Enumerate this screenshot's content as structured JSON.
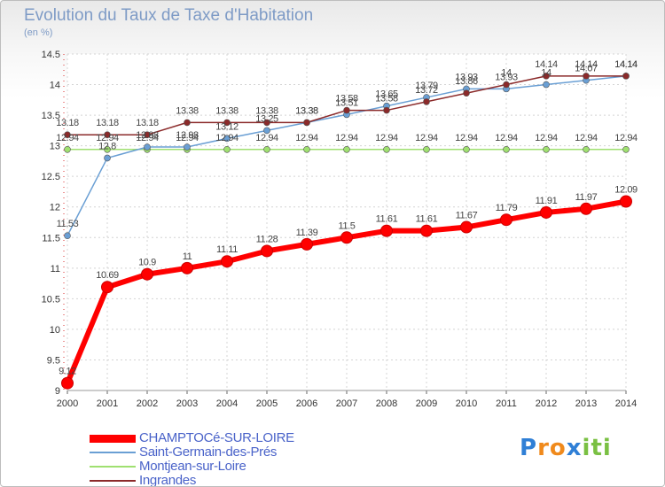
{
  "header": {
    "title": "Evolution du Taux de Taxe d'Habitation",
    "unit": "(en %)"
  },
  "chart_data": {
    "type": "line",
    "title": "Evolution du Taux de Taxe d'Habitation",
    "ylabel": "(en %)",
    "xlabel": "",
    "x": [
      2000,
      2001,
      2002,
      2003,
      2004,
      2005,
      2006,
      2007,
      2008,
      2009,
      2010,
      2011,
      2012,
      2013,
      2014
    ],
    "ylim": [
      9,
      14.5
    ],
    "yticks": [
      "9",
      "9.5",
      "10",
      "10.5",
      "11",
      "11.5",
      "12",
      "12.5",
      "13",
      "13.5",
      "14",
      "14.5"
    ],
    "grid": true,
    "legend_position": "bottom-left",
    "series": [
      {
        "name": "CHAMPTOCé-SUR-LOIRE",
        "color": "#ff0000",
        "values": [
          9.12,
          10.69,
          10.9,
          11,
          11.11,
          11.28,
          11.39,
          11.5,
          11.61,
          11.61,
          11.67,
          11.79,
          11.91,
          11.97,
          12.09
        ],
        "labels": [
          "9.12",
          "10.69",
          "10.9",
          "11",
          "11.11",
          "11.28",
          "11.39",
          "11.5",
          "11.61",
          "11.61",
          "11.67",
          "11.79",
          "11.91",
          "11.97",
          "12.09"
        ]
      },
      {
        "name": "Saint-Germain-des-Prés",
        "color": "#6a9fd4",
        "values": [
          11.53,
          12.8,
          12.98,
          12.98,
          13.12,
          13.25,
          13.38,
          13.51,
          13.65,
          13.79,
          13.93,
          13.93,
          14.0,
          14.07,
          14.14
        ],
        "labels": [
          "11.53",
          "12.8",
          "12.98",
          "12.98",
          "13.12",
          "13.25",
          "13.38",
          "13.51",
          "13.65",
          "13.79",
          "13.93",
          "13.93",
          "14",
          "14.07",
          "14.14"
        ]
      },
      {
        "name": "Montjean-sur-Loire",
        "color": "#9fe070",
        "values": [
          12.94,
          12.94,
          12.94,
          12.94,
          12.94,
          12.94,
          12.94,
          12.94,
          12.94,
          12.94,
          12.94,
          12.94,
          12.94,
          12.94,
          12.94
        ],
        "labels": [
          "12.94",
          "12.94",
          "12.94",
          "12.94",
          "12.94",
          "12.94",
          "12.94",
          "12.94",
          "12.94",
          "12.94",
          "12.94",
          "12.94",
          "12.94",
          "12.94",
          "12.94"
        ]
      },
      {
        "name": "Ingrandes",
        "color": "#8b2a2a",
        "values": [
          13.18,
          13.18,
          13.18,
          13.38,
          13.38,
          13.38,
          13.38,
          13.58,
          13.58,
          13.72,
          13.86,
          14.0,
          14.14,
          14.14,
          14.14
        ],
        "labels": [
          "13.18",
          "13.18",
          "13.18",
          "13.38",
          "13.38",
          "13.38",
          "13.38",
          "13.58",
          "13.58",
          "13.72",
          "13.86",
          "14",
          "14.14",
          "14.14",
          "14.14"
        ]
      }
    ]
  },
  "logo": {
    "letters": [
      "P",
      "r",
      "o",
      "x",
      "i",
      "t",
      "i"
    ],
    "colors": [
      "#2f7fd6",
      "#f08a1c",
      "#f08a1c",
      "#2f7fd6",
      "#7ac043",
      "#7ac043",
      "#7ac043"
    ]
  }
}
